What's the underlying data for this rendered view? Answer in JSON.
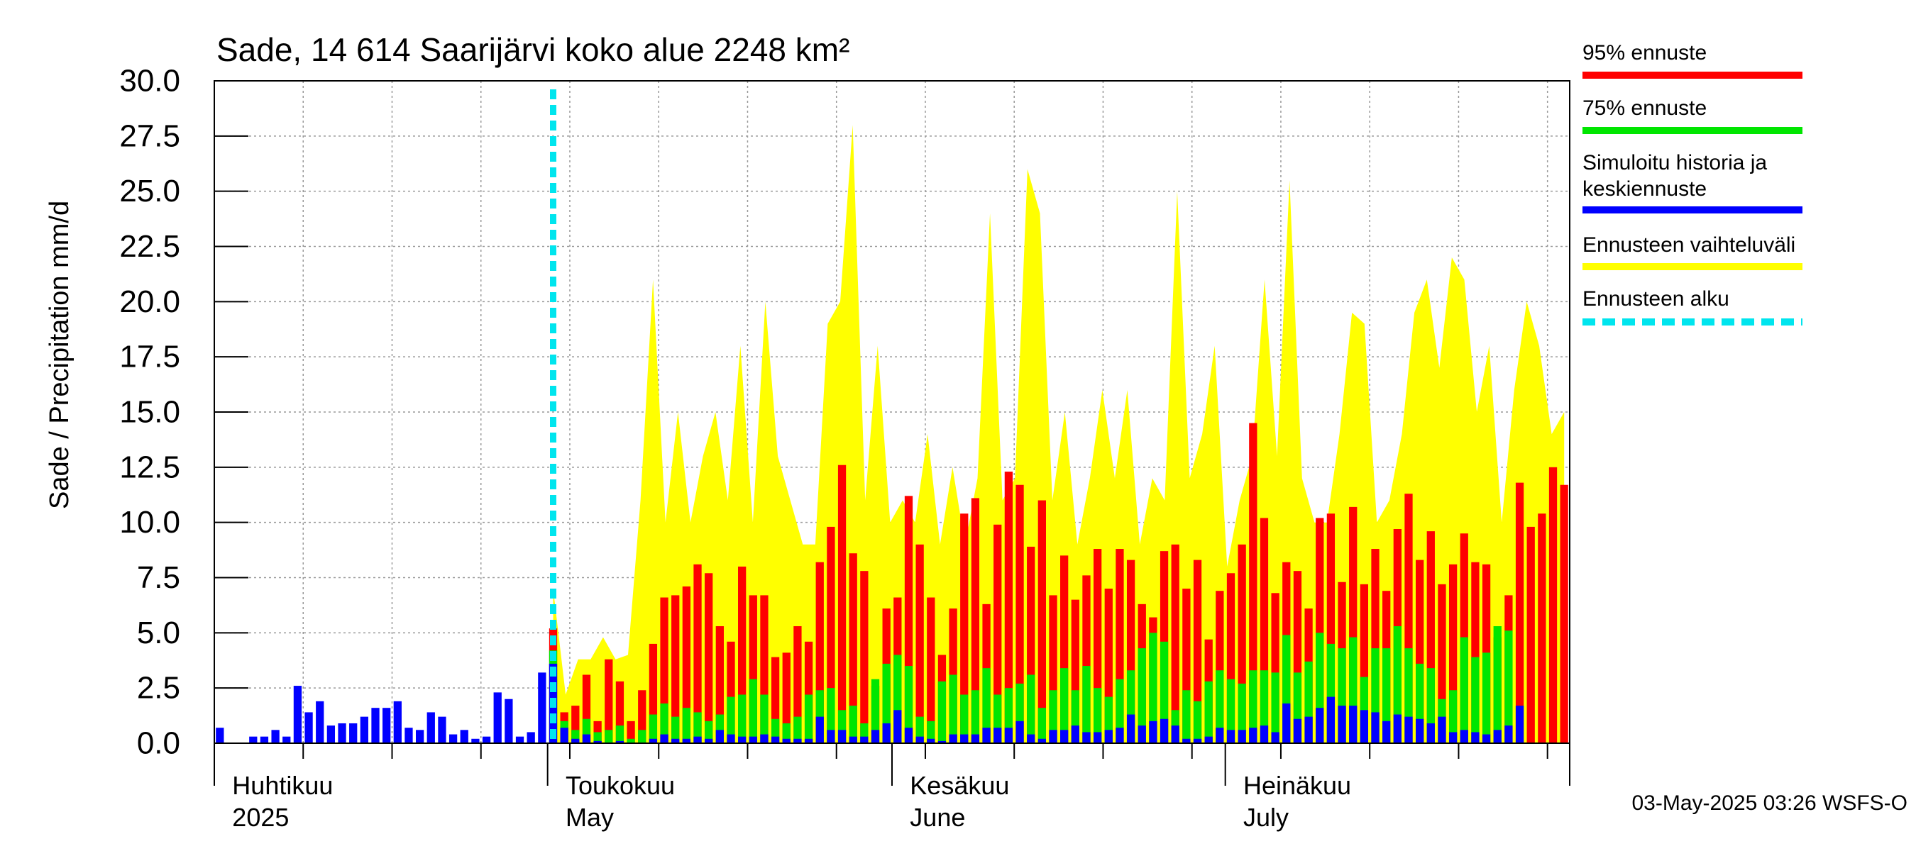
{
  "chart_data": {
    "type": "bar",
    "title": "Sade, 14 614 Saarijärvi koko alue 2248 km²",
    "ylabel": "Sade / Precipitation   mm/d",
    "ylim": [
      0,
      30
    ],
    "yticks": [
      "0.0",
      "2.5",
      "5.0",
      "7.5",
      "10.0",
      "12.5",
      "15.0",
      "17.5",
      "20.0",
      "22.5",
      "25.0",
      "27.5",
      "30.0"
    ],
    "month_labels": [
      {
        "fi": "Huhtikuu",
        "en": "2025",
        "day": 2
      },
      {
        "fi": "Toukokuu",
        "en": "May",
        "day": 32
      },
      {
        "fi": "Kesäkuu",
        "en": "June",
        "day": 63
      },
      {
        "fi": "Heinäkuu",
        "en": "July",
        "day": 93
      }
    ],
    "forecast_start_day": 30.5,
    "footer": "03-May-2025 03:26 WSFS-O",
    "colors": {
      "p95": "#ff0000",
      "p75": "#00e600",
      "median": "#0000ff",
      "range": "#ffff00",
      "start": "#00e5ee"
    },
    "legend": [
      {
        "label": "95% ennuste",
        "key": "p95",
        "style": "solid"
      },
      {
        "label": "75% ennuste",
        "key": "p75",
        "style": "solid"
      },
      {
        "label": "Simuloitu historia ja keskiennuste",
        "key": "median",
        "style": "solid"
      },
      {
        "label": "Ennusteen vaihteluväli",
        "key": "range",
        "style": "solid"
      },
      {
        "label": "Ennusteen alku",
        "key": "start",
        "style": "dashed"
      }
    ],
    "history_start_day": 0,
    "history": [
      0.7,
      0.0,
      0.0,
      0.3,
      0.3,
      0.6,
      0.3,
      2.6,
      1.4,
      1.9,
      0.8,
      0.9,
      0.9,
      1.2,
      1.6,
      1.6,
      1.9,
      0.7,
      0.6,
      1.4,
      1.2,
      0.4,
      0.6,
      0.2,
      0.3,
      2.3,
      2.0,
      0.3,
      0.5,
      3.2
    ],
    "forecast_start_index": 30,
    "range_max": [
      7.0,
      2.2,
      3.8,
      3.8,
      4.8,
      3.8,
      4.0,
      11.0,
      21.0,
      10.0,
      15.0,
      10.0,
      13.0,
      15.0,
      11.0,
      18.0,
      10.0,
      20.0,
      13.0,
      11.0,
      9.0,
      9.0,
      19.0,
      20.0,
      28.0,
      11.0,
      18.0,
      10.0,
      11.0,
      10.0,
      14.0,
      9.0,
      12.5,
      9.0,
      12.0,
      24.0,
      11.0,
      12.0,
      26.0,
      24.0,
      11.0,
      15.0,
      9.0,
      12.0,
      16.0,
      12.0,
      16.0,
      9.0,
      12.0,
      11.0,
      25.0,
      12.0,
      14.0,
      18.0,
      8.0,
      11.0,
      13.0,
      21.0,
      13.0,
      25.5,
      12.0,
      10.0,
      10.0,
      14.0,
      19.5,
      19.0,
      10.0,
      11.0,
      14.0,
      19.5,
      21.0,
      17.0,
      22.0,
      21.0,
      15.0,
      18.0,
      10.0,
      16.0,
      20.0,
      18.0,
      14.0,
      15.0
    ],
    "p95": [
      5.2,
      1.4,
      1.7,
      3.1,
      1.0,
      3.8,
      2.8,
      1.0,
      2.4,
      4.5,
      6.6,
      6.7,
      7.1,
      8.1,
      7.7,
      5.3,
      4.6,
      8.0,
      6.7,
      6.7,
      3.9,
      4.1,
      5.3,
      4.6,
      8.2,
      9.8,
      12.6,
      8.6,
      7.8,
      2.6,
      6.1,
      6.6,
      11.2,
      9.0,
      6.6,
      4.0,
      6.1,
      10.4,
      11.1,
      6.3,
      9.9,
      12.3,
      11.7,
      8.9,
      11.0,
      6.7,
      8.5,
      6.5,
      7.6,
      8.8,
      7.0,
      8.8,
      8.3,
      6.3,
      5.7,
      8.7,
      9.0,
      7.0,
      8.3,
      4.7,
      6.9,
      7.7,
      9.0,
      14.5,
      10.2,
      6.8,
      8.2,
      7.8,
      6.1,
      10.2,
      10.4,
      7.3,
      10.7,
      7.2,
      8.8,
      6.9,
      9.7,
      11.3,
      8.3,
      9.6,
      7.2,
      8.1,
      9.5,
      8.2,
      8.1,
      4.8,
      6.7,
      11.8,
      9.8,
      10.4,
      12.5,
      11.7
    ],
    "p75": [
      4.2,
      1.0,
      0.6,
      1.1,
      0.5,
      0.6,
      0.8,
      0.2,
      0.6,
      1.3,
      1.8,
      1.2,
      1.6,
      1.4,
      1.0,
      1.3,
      2.1,
      2.2,
      2.9,
      2.2,
      1.1,
      0.9,
      1.2,
      2.2,
      2.4,
      2.5,
      1.5,
      1.7,
      0.9,
      2.9,
      3.6,
      4.0,
      3.5,
      1.2,
      1.0,
      2.8,
      3.1,
      2.2,
      2.4,
      3.4,
      2.2,
      2.5,
      2.7,
      3.1,
      1.6,
      2.4,
      3.4,
      2.4,
      3.5,
      2.5,
      2.1,
      2.9,
      3.3,
      4.3,
      5.0,
      4.6,
      1.5,
      2.4,
      1.9,
      2.8,
      3.3,
      2.9,
      2.7,
      3.3,
      3.3,
      3.2,
      4.9,
      3.2,
      3.7,
      5.0,
      4.5,
      4.3,
      4.8,
      3.0,
      4.3,
      4.3,
      5.3,
      4.3,
      3.6,
      3.4,
      2.0,
      2.4,
      4.8,
      3.9,
      4.1,
      5.3,
      5.1
    ],
    "median": [
      3.6,
      0.7,
      0.2,
      0.4,
      0.1,
      0.0,
      0.1,
      0.0,
      0.0,
      0.2,
      0.4,
      0.2,
      0.2,
      0.3,
      0.2,
      0.6,
      0.4,
      0.3,
      0.3,
      0.4,
      0.3,
      0.2,
      0.2,
      0.2,
      1.2,
      0.6,
      0.6,
      0.3,
      0.3,
      0.6,
      0.9,
      1.5,
      0.7,
      0.3,
      0.2,
      0.1,
      0.4,
      0.4,
      0.4,
      0.7,
      0.7,
      0.7,
      1.0,
      0.4,
      0.2,
      0.6,
      0.6,
      0.8,
      0.5,
      0.5,
      0.6,
      0.7,
      1.3,
      0.8,
      1.0,
      1.1,
      0.8,
      0.2,
      0.2,
      0.3,
      0.7,
      0.6,
      0.6,
      0.7,
      0.8,
      0.5,
      1.8,
      1.1,
      1.2,
      1.6,
      2.1,
      1.7,
      1.7,
      1.5,
      1.4,
      1.0,
      1.3,
      1.2,
      1.1,
      0.9,
      1.2,
      0.5,
      0.6,
      0.5,
      0.4,
      0.6,
      0.8,
      1.7
    ]
  }
}
